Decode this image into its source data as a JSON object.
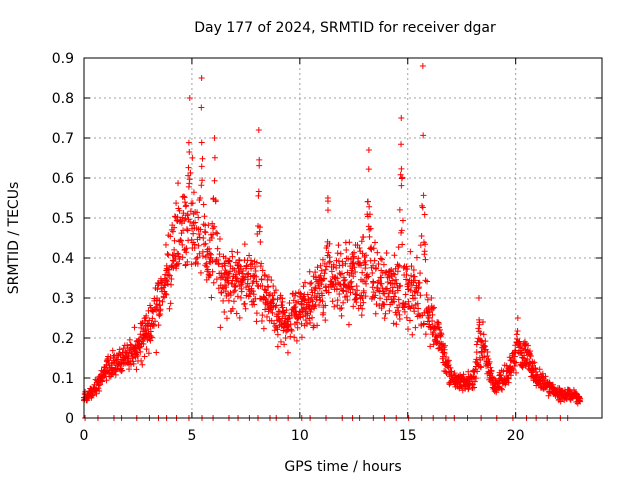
{
  "chart_data": {
    "type": "scatter",
    "title": "Day 177 of 2024, SRMTID for receiver dgar",
    "xlabel": "GPS time / hours",
    "ylabel": "SRMTID / TECUs",
    "xlim": [
      0,
      24
    ],
    "ylim": [
      0,
      0.9
    ],
    "xticks": [
      0,
      5,
      10,
      15,
      20
    ],
    "yticks": [
      0,
      0.1,
      0.2,
      0.3,
      0.4,
      0.5,
      0.6,
      0.7,
      0.8,
      0.9
    ],
    "ytick_labels": [
      "0",
      "0.1",
      "0.2",
      "0.3",
      "0.4",
      "0.5",
      "0.6",
      "0.7",
      "0.8",
      "0.9"
    ],
    "grid": true,
    "marker": "+",
    "series": [
      {
        "name": "SRMTID",
        "color": "#ff0000",
        "envelope_x": [
          0,
          0.5,
          1,
          1.5,
          2,
          2.5,
          3,
          3.5,
          4,
          4.5,
          5,
          5.5,
          6,
          6.5,
          7,
          7.5,
          8,
          8.5,
          9,
          9.5,
          10,
          10.5,
          11,
          11.5,
          12,
          12.5,
          13,
          13.5,
          14,
          14.5,
          15,
          15.5,
          16,
          16.5,
          17,
          17.5,
          18,
          18.5,
          19,
          19.5,
          20,
          20.5,
          21,
          21.5,
          22,
          22.5,
          23
        ],
        "envelope_y": [
          0.05,
          0.07,
          0.12,
          0.14,
          0.15,
          0.18,
          0.22,
          0.28,
          0.42,
          0.45,
          0.48,
          0.42,
          0.38,
          0.36,
          0.34,
          0.33,
          0.32,
          0.3,
          0.25,
          0.24,
          0.27,
          0.3,
          0.33,
          0.34,
          0.34,
          0.36,
          0.38,
          0.34,
          0.33,
          0.32,
          0.33,
          0.3,
          0.25,
          0.2,
          0.1,
          0.09,
          0.09,
          0.18,
          0.08,
          0.1,
          0.15,
          0.16,
          0.1,
          0.08,
          0.06,
          0.06,
          0.05
        ],
        "peaks": [
          {
            "x": 4.9,
            "y": 0.8
          },
          {
            "x": 5.45,
            "y": 0.85
          },
          {
            "x": 6.05,
            "y": 0.7
          },
          {
            "x": 8.1,
            "y": 0.72
          },
          {
            "x": 11.3,
            "y": 0.55
          },
          {
            "x": 13.2,
            "y": 0.67
          },
          {
            "x": 14.7,
            "y": 0.75
          },
          {
            "x": 15.7,
            "y": 0.88
          },
          {
            "x": 18.3,
            "y": 0.3
          },
          {
            "x": 20.1,
            "y": 0.25
          }
        ]
      }
    ]
  }
}
